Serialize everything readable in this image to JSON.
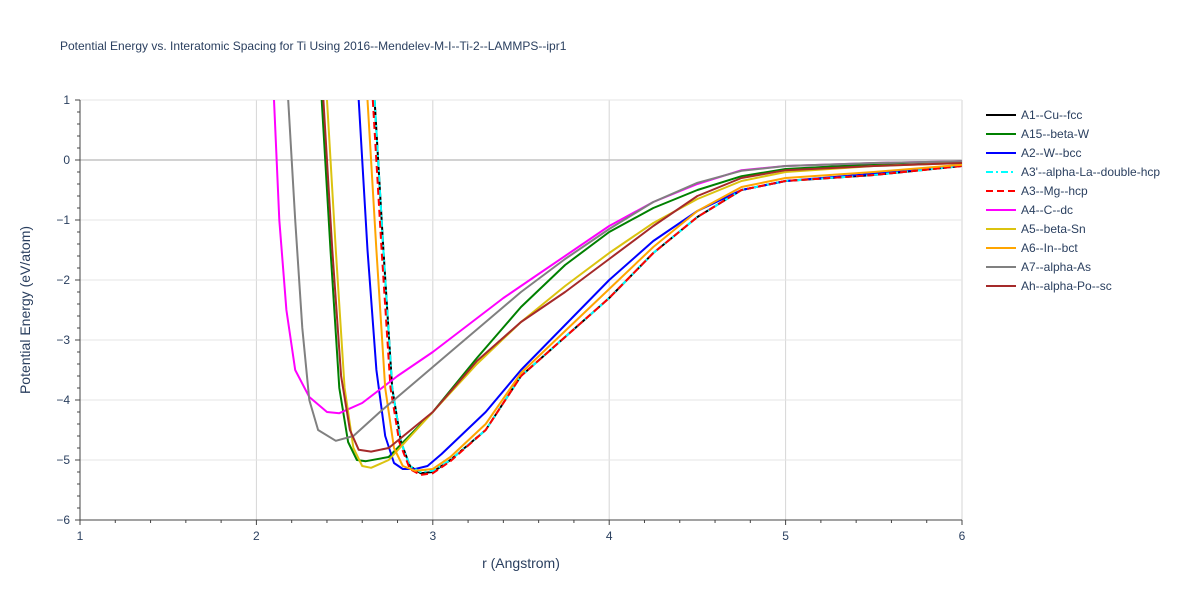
{
  "chart_data": {
    "type": "line",
    "title": "Potential Energy vs. Interatomic Spacing for Ti Using 2016--Mendelev-M-I--Ti-2--LAMMPS--ipr1",
    "xlabel": "r (Angstrom)",
    "ylabel": "Potential Energy (eV/atom)",
    "xlim": [
      1,
      6
    ],
    "ylim": [
      -6,
      1
    ],
    "xticks": [
      "1",
      "2",
      "3",
      "4",
      "5",
      "6"
    ],
    "yticks": [
      "−6",
      "−5",
      "−4",
      "−3",
      "−2",
      "−1",
      "0",
      "1"
    ],
    "grid": true,
    "legend": "right",
    "series": [
      {
        "name": "A1--Cu--fcc",
        "color": "#000000",
        "dash": "solid",
        "points": [
          [
            2.67,
            1
          ],
          [
            2.72,
            -1.5
          ],
          [
            2.77,
            -3.8
          ],
          [
            2.82,
            -4.7
          ],
          [
            2.87,
            -5.1
          ],
          [
            2.93,
            -5.22
          ],
          [
            3.0,
            -5.2
          ],
          [
            3.1,
            -5.0
          ],
          [
            3.3,
            -4.5
          ],
          [
            3.5,
            -3.6
          ],
          [
            3.75,
            -2.95
          ],
          [
            4.0,
            -2.3
          ],
          [
            4.25,
            -1.55
          ],
          [
            4.5,
            -0.95
          ],
          [
            4.75,
            -0.5
          ],
          [
            5.0,
            -0.35
          ],
          [
            5.5,
            -0.25
          ],
          [
            6.0,
            -0.1
          ]
        ]
      },
      {
        "name": "A15--beta-W",
        "color": "#008000",
        "dash": "solid",
        "points": [
          [
            2.37,
            1
          ],
          [
            2.42,
            -1.5
          ],
          [
            2.47,
            -3.8
          ],
          [
            2.52,
            -4.7
          ],
          [
            2.57,
            -5.0
          ],
          [
            2.62,
            -5.02
          ],
          [
            2.75,
            -4.95
          ],
          [
            3.0,
            -4.2
          ],
          [
            3.25,
            -3.3
          ],
          [
            3.5,
            -2.45
          ],
          [
            3.75,
            -1.75
          ],
          [
            4.0,
            -1.2
          ],
          [
            4.25,
            -0.8
          ],
          [
            4.5,
            -0.5
          ],
          [
            4.75,
            -0.27
          ],
          [
            5.0,
            -0.15
          ],
          [
            5.5,
            -0.07
          ],
          [
            6.0,
            -0.02
          ]
        ]
      },
      {
        "name": "A2--W--bcc",
        "color": "#0000ff",
        "dash": "solid",
        "points": [
          [
            2.58,
            1
          ],
          [
            2.63,
            -1.5
          ],
          [
            2.68,
            -3.5
          ],
          [
            2.73,
            -4.6
          ],
          [
            2.78,
            -5.05
          ],
          [
            2.83,
            -5.15
          ],
          [
            2.9,
            -5.15
          ],
          [
            2.97,
            -5.1
          ],
          [
            3.05,
            -4.9
          ],
          [
            3.3,
            -4.2
          ],
          [
            3.5,
            -3.5
          ],
          [
            3.75,
            -2.75
          ],
          [
            4.0,
            -2.0
          ],
          [
            4.25,
            -1.35
          ],
          [
            4.5,
            -0.85
          ],
          [
            4.75,
            -0.5
          ],
          [
            5.0,
            -0.35
          ],
          [
            5.5,
            -0.23
          ],
          [
            6.0,
            -0.09
          ]
        ]
      },
      {
        "name": "A3'--alpha-La--double-hcp",
        "color": "#00ffff",
        "dash": "dashdot",
        "points": [
          [
            2.67,
            1
          ],
          [
            2.72,
            -1.5
          ],
          [
            2.77,
            -3.8
          ],
          [
            2.82,
            -4.7
          ],
          [
            2.87,
            -5.1
          ],
          [
            2.93,
            -5.2
          ],
          [
            3.0,
            -5.18
          ],
          [
            3.1,
            -5.0
          ],
          [
            3.3,
            -4.5
          ],
          [
            3.5,
            -3.6
          ],
          [
            3.75,
            -2.95
          ],
          [
            4.0,
            -2.3
          ],
          [
            4.25,
            -1.55
          ],
          [
            4.5,
            -0.95
          ],
          [
            4.75,
            -0.5
          ],
          [
            5.0,
            -0.35
          ],
          [
            5.5,
            -0.25
          ],
          [
            6.0,
            -0.1
          ]
        ]
      },
      {
        "name": "A3--Mg--hcp",
        "color": "#ff0000",
        "dash": "dash",
        "points": [
          [
            2.66,
            1
          ],
          [
            2.71,
            -1.5
          ],
          [
            2.76,
            -3.8
          ],
          [
            2.81,
            -4.7
          ],
          [
            2.87,
            -5.15
          ],
          [
            2.93,
            -5.25
          ],
          [
            3.0,
            -5.22
          ],
          [
            3.1,
            -5.02
          ],
          [
            3.3,
            -4.5
          ],
          [
            3.5,
            -3.6
          ],
          [
            3.75,
            -2.95
          ],
          [
            4.0,
            -2.3
          ],
          [
            4.25,
            -1.55
          ],
          [
            4.5,
            -0.95
          ],
          [
            4.75,
            -0.5
          ],
          [
            5.0,
            -0.35
          ],
          [
            5.5,
            -0.25
          ],
          [
            6.0,
            -0.1
          ]
        ]
      },
      {
        "name": "A4--C--dc",
        "color": "#ff00ff",
        "dash": "solid",
        "points": [
          [
            2.1,
            1
          ],
          [
            2.13,
            -1.0
          ],
          [
            2.17,
            -2.5
          ],
          [
            2.22,
            -3.5
          ],
          [
            2.3,
            -3.95
          ],
          [
            2.4,
            -4.2
          ],
          [
            2.47,
            -4.22
          ],
          [
            2.6,
            -4.05
          ],
          [
            2.8,
            -3.6
          ],
          [
            3.0,
            -3.2
          ],
          [
            3.2,
            -2.75
          ],
          [
            3.4,
            -2.3
          ],
          [
            3.6,
            -1.9
          ],
          [
            3.8,
            -1.5
          ],
          [
            4.0,
            -1.1
          ],
          [
            4.25,
            -0.7
          ],
          [
            4.5,
            -0.4
          ],
          [
            4.75,
            -0.17
          ],
          [
            5.0,
            -0.1
          ],
          [
            5.5,
            -0.05
          ],
          [
            6.0,
            -0.02
          ]
        ]
      },
      {
        "name": "A5--beta-Sn",
        "color": "#dbc30f",
        "dash": "solid",
        "points": [
          [
            2.4,
            1
          ],
          [
            2.45,
            -1.5
          ],
          [
            2.5,
            -3.8
          ],
          [
            2.55,
            -4.8
          ],
          [
            2.6,
            -5.1
          ],
          [
            2.65,
            -5.13
          ],
          [
            2.75,
            -5.0
          ],
          [
            3.0,
            -4.2
          ],
          [
            3.25,
            -3.4
          ],
          [
            3.5,
            -2.7
          ],
          [
            3.75,
            -2.1
          ],
          [
            4.0,
            -1.55
          ],
          [
            4.25,
            -1.05
          ],
          [
            4.5,
            -0.65
          ],
          [
            4.75,
            -0.35
          ],
          [
            5.0,
            -0.2
          ],
          [
            5.5,
            -0.1
          ],
          [
            6.0,
            -0.05
          ]
        ]
      },
      {
        "name": "A6--In--bct",
        "color": "#ffa500",
        "dash": "solid",
        "points": [
          [
            2.63,
            1
          ],
          [
            2.68,
            -1.5
          ],
          [
            2.73,
            -3.8
          ],
          [
            2.78,
            -4.8
          ],
          [
            2.83,
            -5.1
          ],
          [
            2.9,
            -5.18
          ],
          [
            3.0,
            -5.15
          ],
          [
            3.1,
            -4.95
          ],
          [
            3.3,
            -4.4
          ],
          [
            3.5,
            -3.55
          ],
          [
            3.75,
            -2.85
          ],
          [
            4.0,
            -2.15
          ],
          [
            4.25,
            -1.45
          ],
          [
            4.5,
            -0.85
          ],
          [
            4.75,
            -0.45
          ],
          [
            5.0,
            -0.3
          ],
          [
            5.5,
            -0.2
          ],
          [
            6.0,
            -0.08
          ]
        ]
      },
      {
        "name": "A7--alpha-As",
        "color": "#808080",
        "dash": "solid",
        "points": [
          [
            2.18,
            1
          ],
          [
            2.22,
            -1.0
          ],
          [
            2.26,
            -2.8
          ],
          [
            2.3,
            -4.0
          ],
          [
            2.35,
            -4.5
          ],
          [
            2.45,
            -4.68
          ],
          [
            2.55,
            -4.6
          ],
          [
            2.7,
            -4.2
          ],
          [
            2.9,
            -3.7
          ],
          [
            3.1,
            -3.2
          ],
          [
            3.3,
            -2.7
          ],
          [
            3.5,
            -2.2
          ],
          [
            3.75,
            -1.65
          ],
          [
            4.0,
            -1.15
          ],
          [
            4.25,
            -0.7
          ],
          [
            4.5,
            -0.38
          ],
          [
            4.75,
            -0.18
          ],
          [
            5.0,
            -0.1
          ],
          [
            5.5,
            -0.05
          ],
          [
            6.0,
            -0.02
          ]
        ]
      },
      {
        "name": "Ah--alpha-Po--sc",
        "color": "#a52a2a",
        "dash": "solid",
        "points": [
          [
            2.38,
            1
          ],
          [
            2.43,
            -1.5
          ],
          [
            2.48,
            -3.6
          ],
          [
            2.53,
            -4.5
          ],
          [
            2.58,
            -4.83
          ],
          [
            2.65,
            -4.86
          ],
          [
            2.75,
            -4.8
          ],
          [
            3.0,
            -4.2
          ],
          [
            3.25,
            -3.35
          ],
          [
            3.5,
            -2.7
          ],
          [
            3.75,
            -2.2
          ],
          [
            4.0,
            -1.65
          ],
          [
            4.25,
            -1.1
          ],
          [
            4.5,
            -0.6
          ],
          [
            4.75,
            -0.3
          ],
          [
            5.0,
            -0.17
          ],
          [
            5.5,
            -0.1
          ],
          [
            6.0,
            -0.05
          ]
        ]
      }
    ]
  }
}
